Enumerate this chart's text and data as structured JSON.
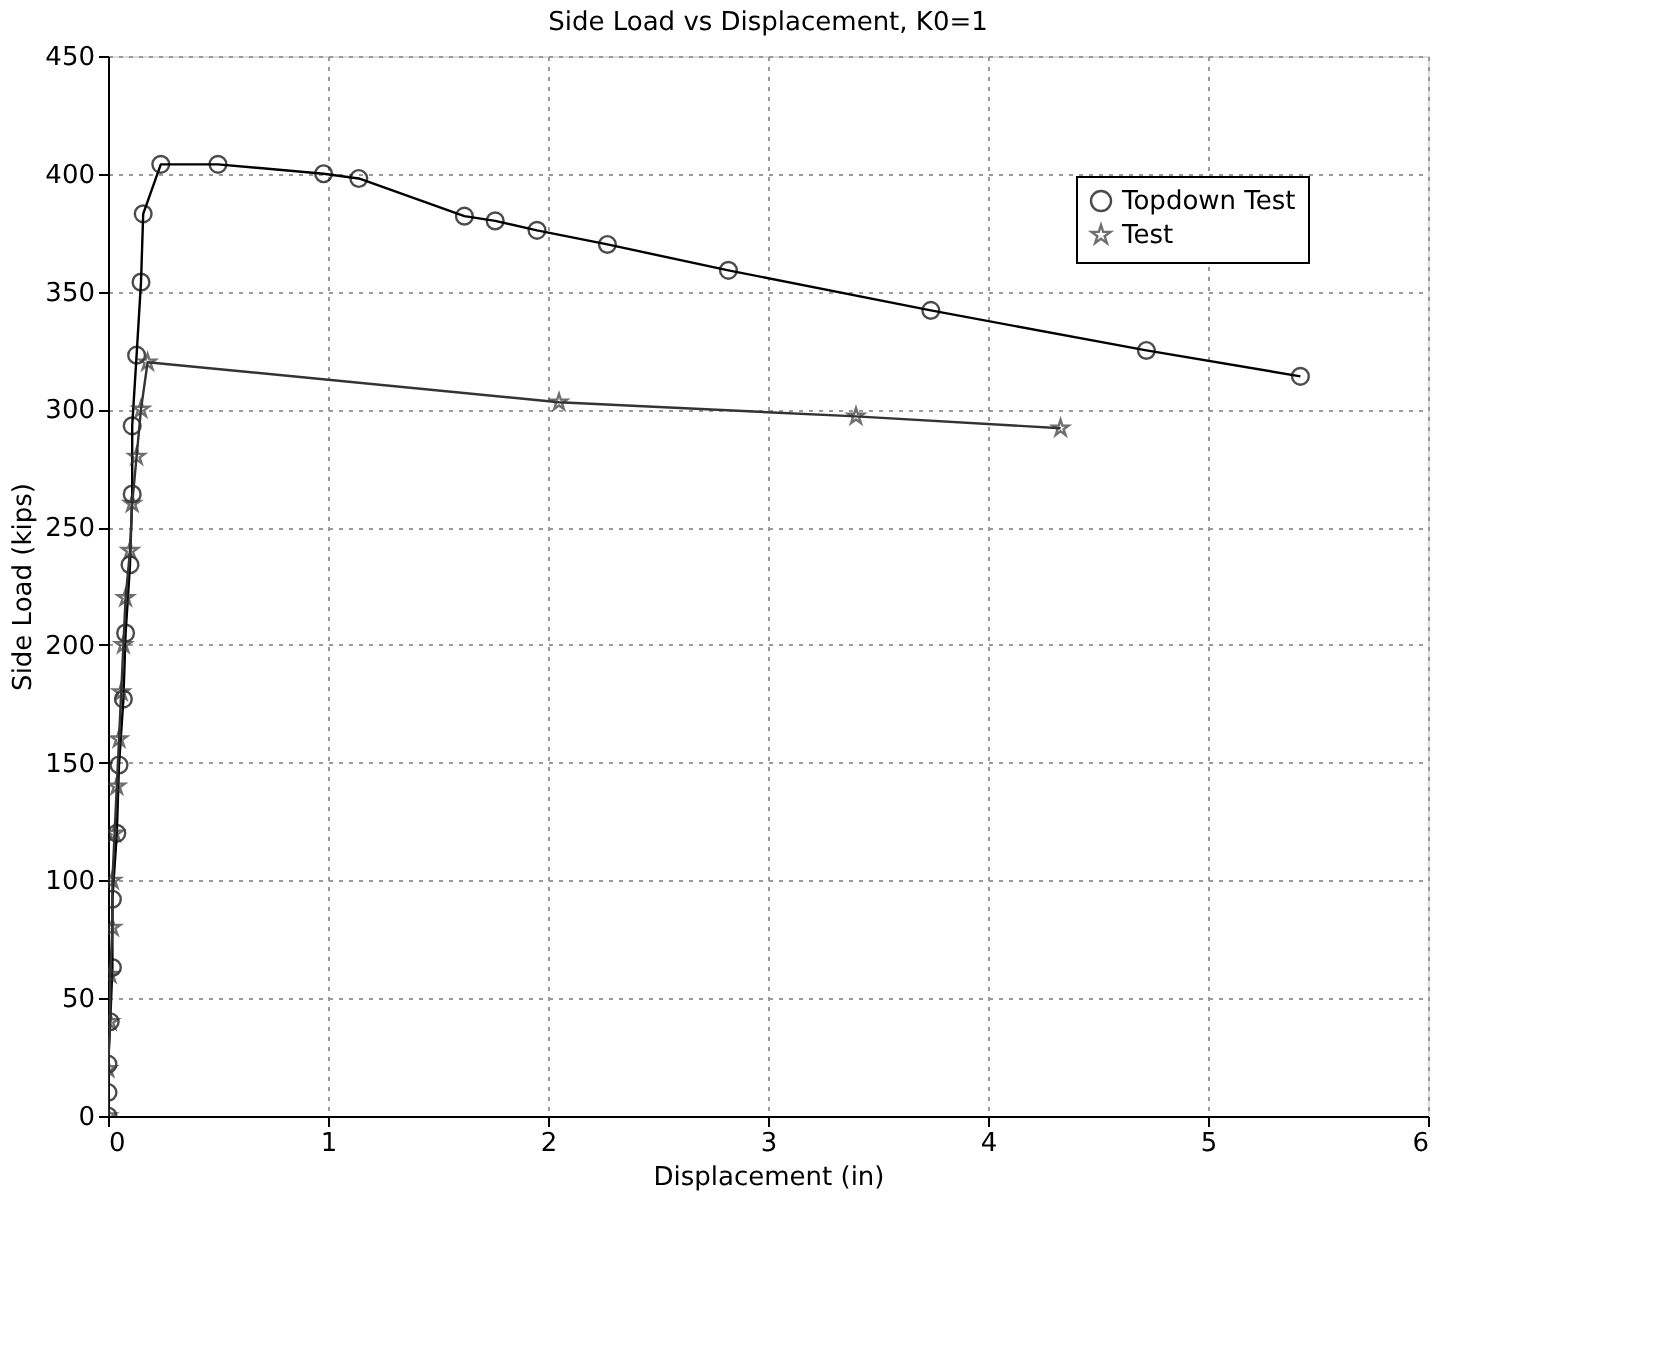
{
  "chart_data": {
    "type": "line",
    "title": "Side Load vs Displacement, K0=1",
    "xlabel": "Displacement (in)",
    "ylabel": "Side Load (kips)",
    "xlim": [
      0,
      6
    ],
    "xticks": [
      0,
      1,
      2,
      3,
      4,
      5,
      6
    ],
    "ylim": [
      0,
      450
    ],
    "yticks": [
      0,
      50,
      100,
      150,
      200,
      250,
      300,
      350,
      400,
      450
    ],
    "grid": true,
    "legend": "top right",
    "line_style": "solid",
    "series": [
      {
        "name": "Topdown Test",
        "color": "#000000",
        "marker": "circle",
        "x": [
          0,
          0,
          0,
          0.01,
          0.02,
          0.02,
          0.04,
          0.05,
          0.07,
          0.08,
          0.1,
          0.11,
          0.11,
          0.13,
          0.15,
          0.16,
          0.24,
          0.5,
          0.98,
          1.14,
          1.62,
          1.76,
          1.95,
          2.27,
          2.82,
          3.74,
          4.72,
          5.42
        ],
        "values": [
          0,
          10,
          22,
          40,
          63,
          92,
          120,
          149,
          177,
          205,
          234,
          264,
          293,
          323,
          354,
          383,
          404,
          404,
          400,
          398,
          382,
          380,
          376,
          370,
          359,
          342,
          325,
          314
        ]
      },
      {
        "name": "Test",
        "color": "#333333",
        "marker": "star",
        "x": [
          0,
          0,
          0.01,
          0.01,
          0.02,
          0.02,
          0.03,
          0.04,
          0.05,
          0.06,
          0.07,
          0.08,
          0.1,
          0.11,
          0.13,
          0.15,
          0.18,
          2.05,
          3.4,
          4.33
        ],
        "values": [
          0,
          20,
          40,
          60,
          80,
          100,
          120,
          140,
          160,
          180,
          200,
          220,
          240,
          260,
          280,
          300,
          320,
          303,
          297,
          292
        ]
      }
    ]
  }
}
